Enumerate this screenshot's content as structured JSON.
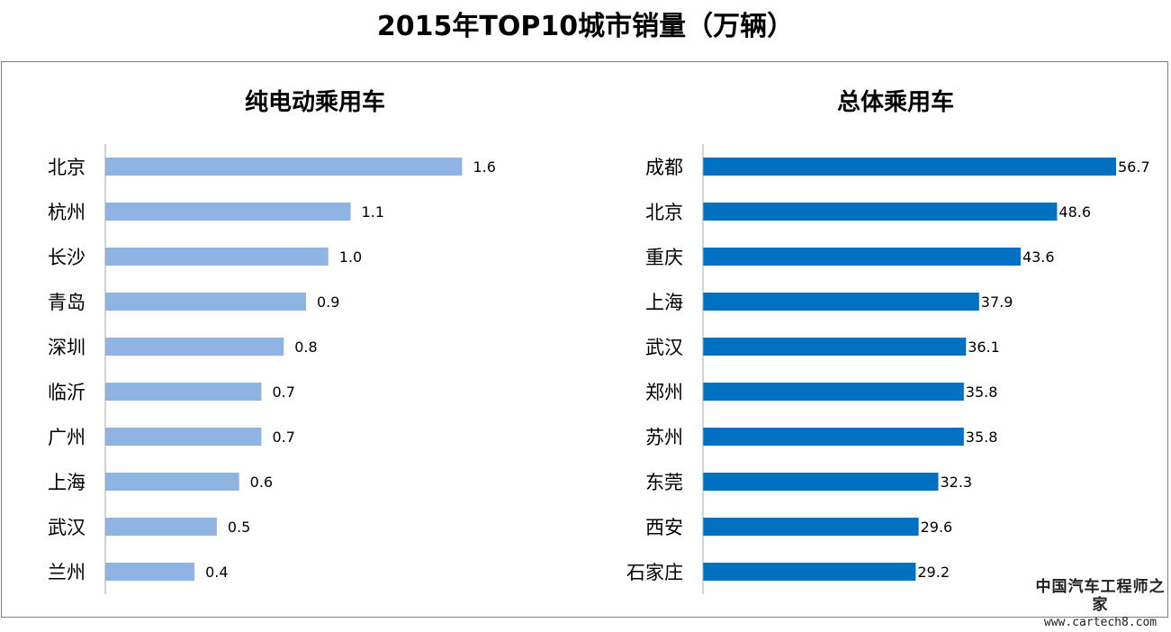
{
  "title": "2015年TOP10城市销量（万辆）",
  "watermark": {
    "name": "中国汽车工程师之家",
    "url": "www.cartech8.com"
  },
  "colors": {
    "ev_bar": "#8db4e2",
    "total_bar": "#0070c0",
    "axis": "#a6a6a6",
    "frame": "#7f7f7f"
  },
  "chart_data": [
    {
      "type": "bar",
      "orientation": "horizontal",
      "title": "纯电动乘用车",
      "categories": [
        "北京",
        "杭州",
        "长沙",
        "青岛",
        "深圳",
        "临沂",
        "广州",
        "上海",
        "武汉",
        "兰州"
      ],
      "values": [
        1.6,
        1.1,
        1.0,
        0.9,
        0.8,
        0.7,
        0.7,
        0.6,
        0.5,
        0.4
      ],
      "value_labels": [
        "1.6",
        "1.1",
        "1.0",
        "0.9",
        "0.8",
        "0.7",
        "0.7",
        "0.6",
        "0.5",
        "0.4"
      ],
      "xlim": [
        0,
        1.8
      ],
      "grid": false,
      "legend": "none"
    },
    {
      "type": "bar",
      "orientation": "horizontal",
      "title": "总体乘用车",
      "categories": [
        "成都",
        "北京",
        "重庆",
        "上海",
        "武汉",
        "郑州",
        "苏州",
        "东莞",
        "西安",
        "石家庄"
      ],
      "values": [
        56.7,
        48.6,
        43.6,
        37.9,
        36.1,
        35.8,
        35.8,
        32.3,
        29.6,
        29.2
      ],
      "value_labels": [
        "56.7",
        "48.6",
        "43.6",
        "37.9",
        "36.1",
        "35.8",
        "35.8",
        "32.3",
        "29.6",
        "29.2"
      ],
      "xlim": [
        0,
        56.7
      ],
      "grid": false,
      "legend": "none"
    }
  ]
}
